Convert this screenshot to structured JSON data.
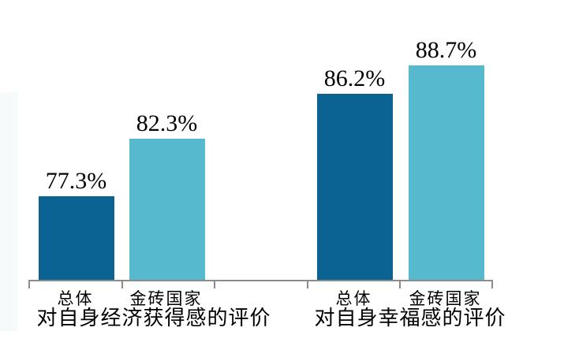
{
  "chart_data": {
    "type": "bar",
    "title": "",
    "xlabel": "",
    "ylabel": "",
    "ylim": [
      70,
      90
    ],
    "grid": false,
    "legend": "none",
    "y_axis_visible": false,
    "value_format": "percent",
    "groups": [
      {
        "label": "对自身经济获得感的评价",
        "categories": [
          "总体",
          "金砖国家"
        ],
        "values": [
          77.3,
          82.3
        ],
        "value_labels": [
          "77.3%",
          "82.3%"
        ]
      },
      {
        "label": "对自身幸福感的评价",
        "categories": [
          "总体",
          "金砖国家"
        ],
        "values": [
          86.2,
          88.7
        ],
        "value_labels": [
          "86.2%",
          "88.7%"
        ]
      }
    ],
    "bars": [
      {
        "group": "对自身经济获得感的评价",
        "category": "总体",
        "value": 77.3,
        "value_label": "77.3%",
        "color_key": "overall"
      },
      {
        "group": "对自身经济获得感的评价",
        "category": "金砖国家",
        "value": 82.3,
        "value_label": "82.3%",
        "color_key": "brics"
      },
      {
        "group": "对自身幸福感的评价",
        "category": "总体",
        "value": 86.2,
        "value_label": "86.2%",
        "color_key": "overall"
      },
      {
        "group": "对自身幸福感的评价",
        "category": "金砖国家",
        "value": 88.7,
        "value_label": "88.7%",
        "color_key": "brics"
      }
    ],
    "colors": {
      "overall": "#0B6394",
      "brics": "#56B9CE",
      "axis": "#8C8C8C",
      "label_text": "#000000",
      "left_strip": "#F6FAFB",
      "background": "#FFFFFF"
    }
  }
}
